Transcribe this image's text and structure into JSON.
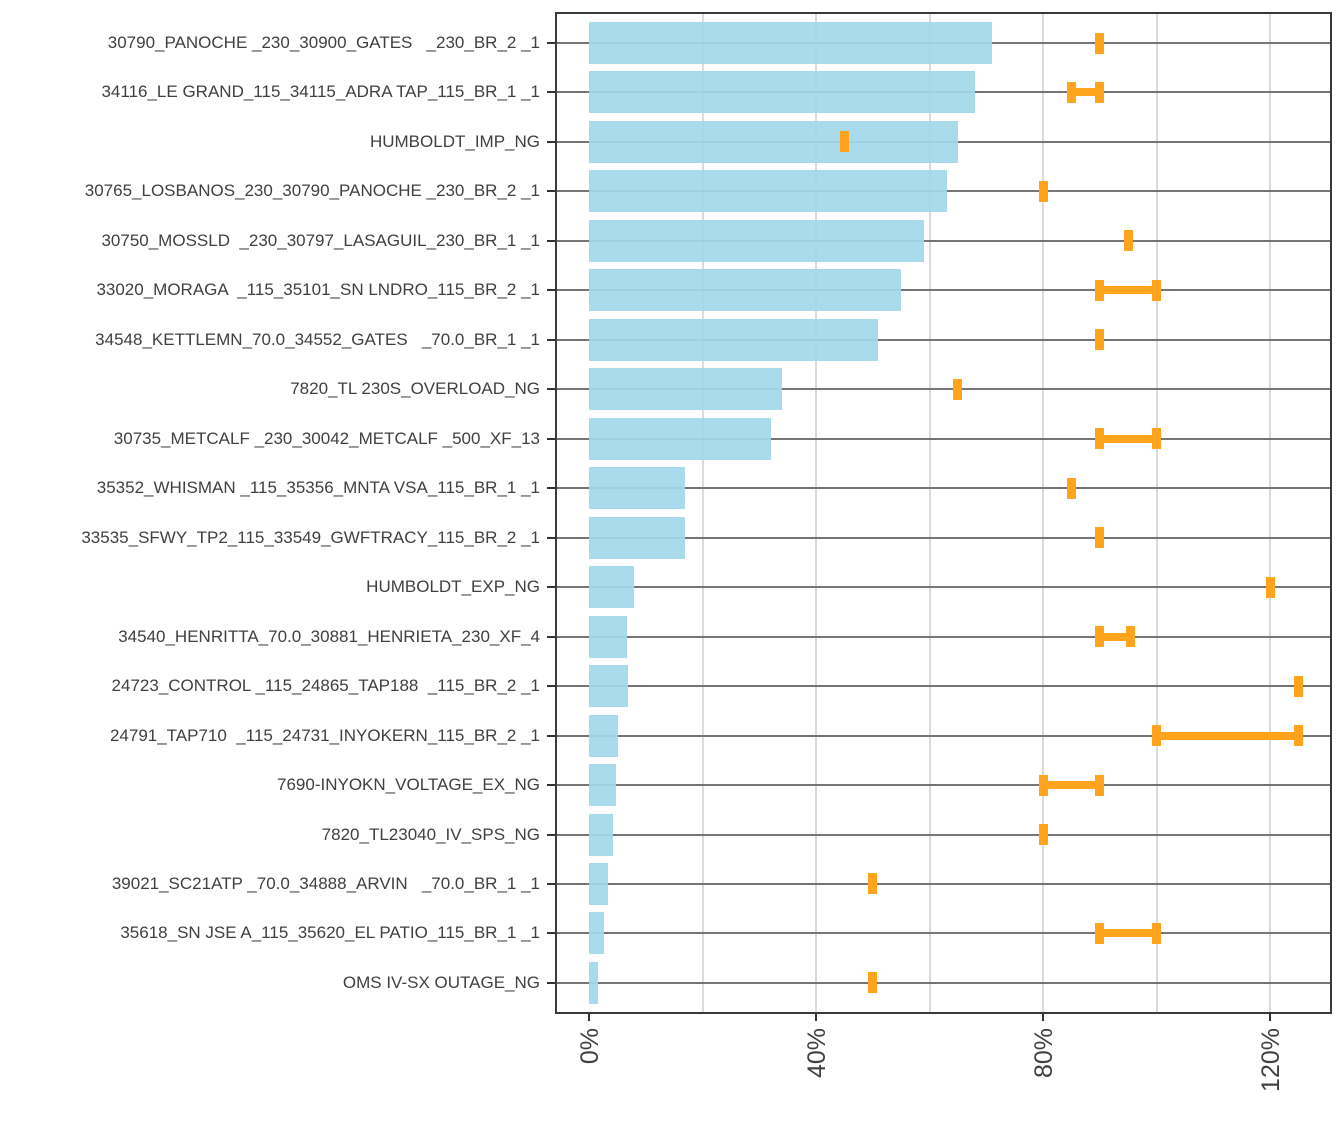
{
  "chart_data": {
    "type": "bar",
    "orientation": "horizontal",
    "title": "",
    "xlabel": "",
    "ylabel": "",
    "grid": true,
    "legend": null,
    "x_axis": {
      "tick_labels": [
        "0%",
        "40%",
        "80%",
        "120%"
      ],
      "tick_values": [
        0,
        40,
        80,
        120
      ],
      "gridline_values": [
        20,
        40,
        60,
        80,
        100,
        120
      ],
      "unit": "percent",
      "range": [
        0,
        130
      ]
    },
    "categories": [
      "30790_PANOCHE _230_30900_GATES   _230_BR_2 _1",
      "34116_LE GRAND_115_34115_ADRA TAP_115_BR_1 _1",
      "HUMBOLDT_IMP_NG",
      "30765_LOSBANOS_230_30790_PANOCHE _230_BR_2 _1",
      "30750_MOSSLD  _230_30797_LASAGUIL_230_BR_1 _1",
      "33020_MORAGA  _115_35101_SN LNDRO_115_BR_2 _1",
      "34548_KETTLEMN_70.0_34552_GATES   _70.0_BR_1 _1",
      "7820_TL 230S_OVERLOAD_NG",
      "30735_METCALF _230_30042_METCALF _500_XF_13",
      "35352_WHISMAN _115_35356_MNTA VSA_115_BR_1 _1",
      "33535_SFWY_TP2_115_33549_GWFTRACY_115_BR_2 _1",
      "HUMBOLDT_EXP_NG",
      "34540_HENRITTA_70.0_30881_HENRIETA_230_XF_4",
      "24723_CONTROL _115_24865_TAP188  _115_BR_2 _1",
      "24791_TAP710  _115_24731_INYOKERN_115_BR_2 _1",
      "7690-INYOKN_VOLTAGE_EX_NG",
      "7820_TL23040_IV_SPS_NG",
      "39021_SC21ATP _70.0_34888_ARVIN   _70.0_BR_1 _1",
      "35618_SN JSE A_115_35620_EL PATIO_115_BR_1 _1",
      "OMS IV-SX OUTAGE_NG"
    ],
    "series": [
      {
        "name": "bar_values_pct",
        "type": "bar",
        "values": [
          71,
          68,
          65,
          63,
          59,
          55,
          51,
          34,
          32,
          17,
          17,
          8,
          6.7,
          6.9,
          5.1,
          4.7,
          4.2,
          3.3,
          2.7,
          1.6
        ]
      },
      {
        "name": "orange_limit_markers_pct",
        "type": "interval",
        "low": [
          90,
          85,
          45,
          80,
          95,
          90,
          90,
          65,
          90,
          85,
          90,
          120,
          90,
          125,
          100,
          80,
          80,
          50,
          90,
          50
        ],
        "high": [
          90,
          90,
          45,
          80,
          95,
          100,
          90,
          65,
          100,
          85,
          90,
          120,
          95.5,
          125,
          125,
          90,
          80,
          50,
          100,
          50
        ]
      }
    ]
  },
  "colors": {
    "bar_fill": "#A2D8EB",
    "marker_orange": "#FFA41C",
    "h_gridline": "#757575",
    "v_gridline": "#DBDBDB",
    "panel_border": "#3A3A3A",
    "axis_text": "#404040",
    "tick_mark": "#333333"
  }
}
